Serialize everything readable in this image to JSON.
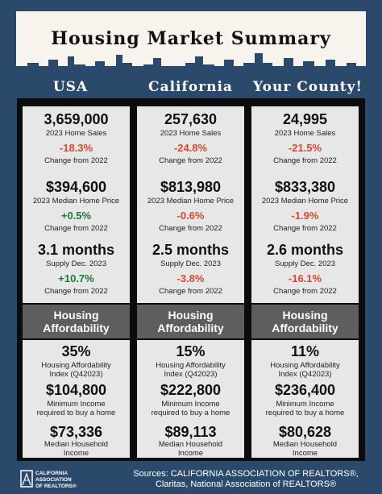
{
  "title": "Housing Market Summary",
  "columns": [
    {
      "heading": "USA",
      "home_sales": "3,659,000",
      "home_sales_label": "2023 Home Sales",
      "home_sales_change": "-18.3%",
      "home_sales_change_label": "Change from 2022",
      "median_price": "$394,600",
      "median_price_label": "2023 Median Home Price",
      "median_price_change": "+0.5%",
      "median_price_change_label": "Change from 2022",
      "supply": "3.1 months",
      "supply_label": "Supply Dec. 2023",
      "supply_change": "+10.7%",
      "supply_change_label": "Change from 2022",
      "band_line1": "Housing",
      "band_line2": "Affordability",
      "hai": "35%",
      "hai_label1": "Housing Affordability",
      "hai_label2": "Index (Q42023)",
      "min_income": "$104,800",
      "min_income_label1": "Minimum Income",
      "min_income_label2": "required to buy a home",
      "household_income": "$73,336",
      "household_income_label1": "Median Household",
      "household_income_label2": "Income"
    },
    {
      "heading": "California",
      "home_sales": "257,630",
      "home_sales_label": "2023 Home Sales",
      "home_sales_change": "-24.8%",
      "home_sales_change_label": "Change from 2022",
      "median_price": "$813,980",
      "median_price_label": "2023 Median Home Price",
      "median_price_change": "-0.6%",
      "median_price_change_label": "Change from 2022",
      "supply": "2.5 months",
      "supply_label": "Supply Dec. 2023",
      "supply_change": "-3.8%",
      "supply_change_label": "Change from 2022",
      "band_line1": "Housing",
      "band_line2": "Affordability",
      "hai": "15%",
      "hai_label1": "Housing Affordability",
      "hai_label2": "Index (Q42023)",
      "min_income": "$222,800",
      "min_income_label1": "Minimum Income",
      "min_income_label2": "required to buy a home",
      "household_income": "$89,113",
      "household_income_label1": "Median Household",
      "household_income_label2": "Income"
    },
    {
      "heading": "Your County!",
      "home_sales": "24,995",
      "home_sales_label": "2023 Home Sales",
      "home_sales_change": "-21.5%",
      "home_sales_change_label": "Change from 2022",
      "median_price": "$833,380",
      "median_price_label": "2023 Median Home Price",
      "median_price_change": "-1.9%",
      "median_price_change_label": "Change from 2022",
      "supply": "2.6 months",
      "supply_label": "Supply Dec. 2023",
      "supply_change": "-16.1%",
      "supply_change_label": "Change from 2022",
      "band_line1": "Housing",
      "band_line2": "Affordability",
      "hai": "11%",
      "hai_label1": "Housing Affordability",
      "hai_label2": "Index (Q42023)",
      "min_income": "$236,400",
      "min_income_label1": "Minimum Income",
      "min_income_label2": "required to buy a home",
      "household_income": "$80,628",
      "household_income_label1": "Median Household",
      "household_income_label2": "Income"
    }
  ],
  "footer": {
    "logo_line1": "CALIFORNIA",
    "logo_line2": "ASSOCIATION",
    "logo_line3": "OF REALTORS®",
    "sources_line1": "Sources: CALIFORNIA ASSOCIATION OF REALTORS®,",
    "sources_line2": "Claritas, National Association of REALTORS®"
  },
  "colors": {
    "background": "#2b4a6b",
    "negative": "#d8492b",
    "positive": "#1e7a3a",
    "band": "#5e5e5e"
  }
}
